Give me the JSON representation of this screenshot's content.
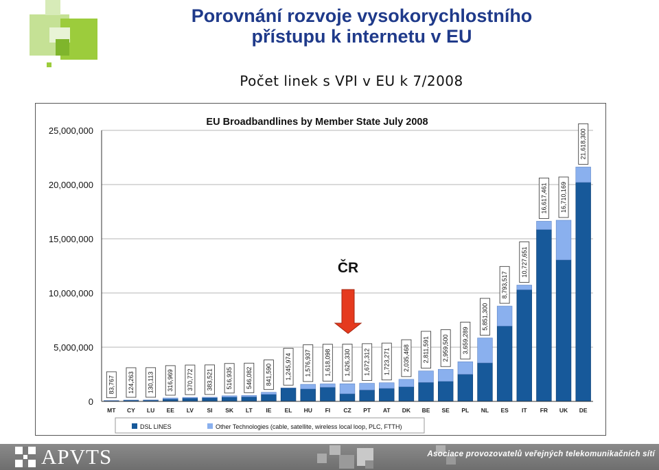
{
  "slide": {
    "title_line1": "Porovnání rozvoje vysokorychlostního",
    "title_line2": "přístupu k internetu v EU",
    "subtitle": "Počet linek s VPI v EU k 7/2008",
    "annotation": "ČR"
  },
  "footer": {
    "logo_text": "APVTS",
    "association": "Asociace provozovatelů veřejných telekomunikačních sítí"
  },
  "colors": {
    "title": "#1f3a8a",
    "logo_green": "#9ccc3c",
    "dsl": "#17599a",
    "other": "#8ab0ee",
    "arrow": "#e53a1e",
    "footer_bg": "#7a7a7a"
  },
  "icons": {
    "logo": "green-squares-logo",
    "arrow": "down-arrow-icon",
    "footer_logo": "apvts-cross-logo"
  },
  "chart_data": {
    "type": "bar",
    "stacked": true,
    "title": "EU Broadbandlines by Member State July 2008",
    "categories": [
      "MT",
      "CY",
      "LU",
      "EE",
      "LV",
      "SI",
      "SK",
      "LT",
      "IE",
      "EL",
      "HU",
      "FI",
      "CZ",
      "PT",
      "AT",
      "DK",
      "BE",
      "SE",
      "PL",
      "NL",
      "ES",
      "IT",
      "FR",
      "UK",
      "DE"
    ],
    "totals": [
      83767,
      124263,
      130113,
      316969,
      370772,
      383521,
      516935,
      546082,
      841590,
      1245974,
      1576937,
      1618098,
      1626330,
      1672312,
      1723271,
      2035468,
      2811591,
      2959500,
      3659289,
      5851300,
      8793517,
      10727651,
      16617461,
      16710169,
      21618300
    ],
    "total_labels": [
      "83,767",
      "124,263",
      "130,113",
      "316,969",
      "370,772",
      "383,521",
      "516,935",
      "546,082",
      "841,590",
      "1,245,974",
      "1,576,937",
      "1,618,098",
      "1,626,330",
      "1,672,312",
      "1,723,271",
      "2,035,468",
      "2,811,591",
      "2,959,500",
      "3,659,289",
      "5,851,300",
      "8,793,517",
      "10,727,651",
      "16,617,461",
      "16,710,169",
      "21,618,300"
    ],
    "series": [
      {
        "name": "DSL LINES",
        "values": [
          70000,
          110000,
          115000,
          220000,
          300000,
          330000,
          400000,
          420000,
          650000,
          1240000,
          1150000,
          1300000,
          700000,
          1050000,
          1200000,
          1350000,
          1750000,
          1850000,
          2500000,
          3550000,
          6950000,
          10300000,
          15850000,
          13050000,
          20200000
        ]
      },
      {
        "name": "Other Technologies (cable, satellite, wireless local loop, PLC, FTTH)",
        "values": [
          13767,
          14263,
          15113,
          96969,
          70772,
          53521,
          116935,
          126082,
          191590,
          5974,
          426937,
          318098,
          926330,
          622312,
          523271,
          685468,
          1061591,
          1109500,
          1159289,
          2301300,
          1843517,
          427651,
          767461,
          3660169,
          1418300
        ]
      }
    ],
    "ylim": [
      0,
      25000000
    ],
    "yticks": [
      "0",
      "5,000,000",
      "10,000,000",
      "15,000,000",
      "20,000,000",
      "25,000,000"
    ],
    "legend_position": "bottom",
    "highlight_category": "CZ"
  }
}
